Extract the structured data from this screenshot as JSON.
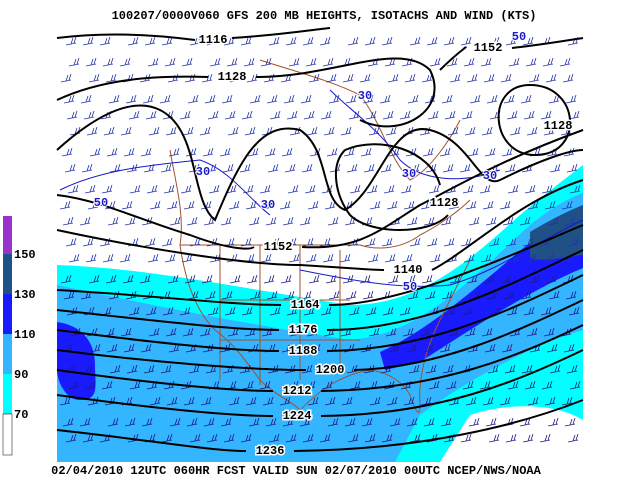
{
  "header": {
    "title": "100207/0000V060 GFS 200 MB  HEIGHTS, ISOTACHS AND WIND (KTS)"
  },
  "legend": {
    "labels": [
      "150",
      "130",
      "110",
      "90",
      "70"
    ]
  },
  "height_labels": [
    "1116",
    "1128",
    "1152",
    "1128",
    "1128",
    "1152",
    "1140",
    "1164",
    "1176",
    "1188",
    "1200",
    "1212",
    "1224",
    "1236"
  ],
  "isotach_labels": [
    "50",
    "30",
    "30",
    "30",
    "30",
    "30",
    "50",
    "50"
  ],
  "footer": {
    "text": "02/04/2010 12UTC 060HR FCST VALID SUN 02/07/2010 00UTC  NCEP/NWS/NOAA"
  }
}
